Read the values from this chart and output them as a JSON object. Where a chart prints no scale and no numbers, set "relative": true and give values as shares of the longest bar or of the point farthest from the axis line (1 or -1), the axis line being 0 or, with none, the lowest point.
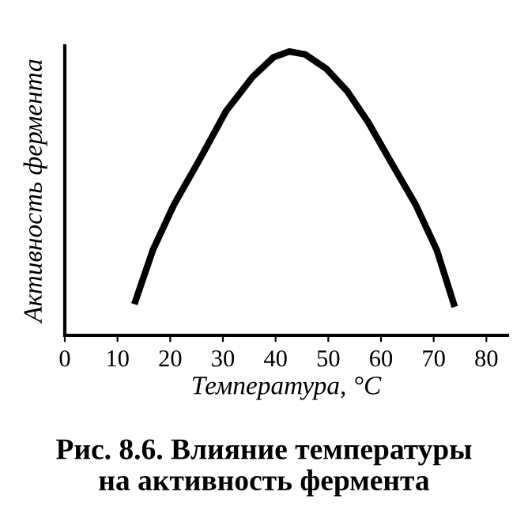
{
  "chart_data": {
    "type": "line",
    "relative": true,
    "xlabel": "Температура, °С",
    "ylabel": "Активность фермента",
    "annotations": [
      "Рис. 8.6. Влияние температуры\nна активность фермента"
    ],
    "x": [
      13.2,
      16.7,
      20.7,
      25.6,
      30.6,
      35.6,
      39.6,
      42.6,
      45.6,
      49.6,
      53.6,
      57.6,
      61.6,
      66.6,
      70.6,
      74.0
    ],
    "series": [
      {
        "color": "#000000",
        "values": [
          0.11,
          0.3,
          0.46,
          0.62,
          0.79,
          0.91,
          0.98,
          1.0,
          0.99,
          0.94,
          0.86,
          0.75,
          0.62,
          0.46,
          0.3,
          0.1
        ]
      }
    ],
    "xlim": [
      0,
      84
    ],
    "xticks": [
      0,
      10,
      20,
      30,
      40,
      50,
      60,
      70,
      80
    ],
    "grid": false,
    "legend": false
  }
}
